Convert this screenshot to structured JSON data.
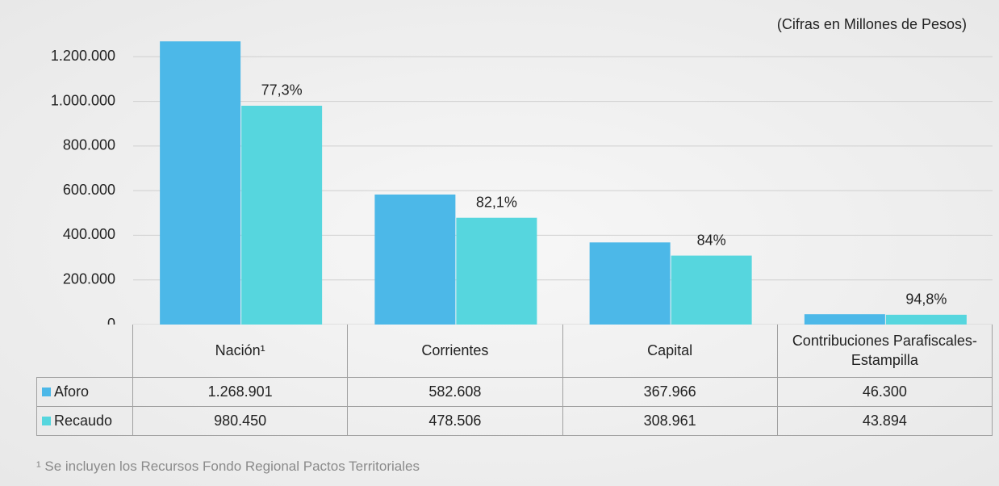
{
  "chart_data": {
    "type": "bar",
    "subtitle": "(Cifras en Millones de Pesos)",
    "categories": [
      "Nación¹",
      "Corrientes",
      "Capital",
      "Contribuciones Parafiscales- Estampilla"
    ],
    "series": [
      {
        "name": "Aforo",
        "color": "#4cb8e8",
        "values": [
          1268901,
          582608,
          367966,
          46300
        ],
        "value_labels": [
          "1.268.901",
          "582.608",
          "367.966",
          "46.300"
        ]
      },
      {
        "name": "Recaudo",
        "color": "#56d6de",
        "values": [
          980450,
          478506,
          308961,
          43894
        ],
        "value_labels": [
          "980.450",
          "478.506",
          "308.961",
          "43.894"
        ]
      }
    ],
    "annotations": [
      "77,3%",
      "82,1%",
      "84%",
      "94,8%"
    ],
    "ylim": [
      0,
      1400000
    ],
    "yticks": [
      0,
      {
        "value": 200000,
        "label": "200.000"
      },
      {
        "value": 400000,
        "label": "400.000"
      },
      {
        "value": 600000,
        "label": "600.000"
      },
      {
        "value": 800000,
        "label": "800.000"
      },
      {
        "value": 1000000,
        "label": "1.000.000"
      },
      {
        "value": 1200000,
        "label": "1.200.000"
      }
    ],
    "grid": true,
    "footnote": "¹ Se incluyen los Recursos Fondo Regional Pactos Territoriales"
  }
}
